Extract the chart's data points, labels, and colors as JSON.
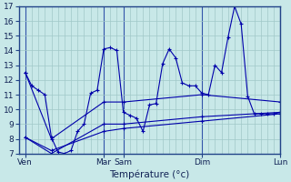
{
  "background_color": "#c8e8e8",
  "grid_color": "#a0c8c8",
  "line_color": "#0000aa",
  "title": "Température (°c)",
  "ylim": [
    7,
    17
  ],
  "yticks": [
    7,
    8,
    9,
    10,
    11,
    12,
    13,
    14,
    15,
    16,
    17
  ],
  "xlim": [
    0,
    40
  ],
  "x_major_ticks": [
    1,
    13,
    16,
    28,
    40
  ],
  "x_labels": [
    "Ven",
    "Mar",
    "Sam",
    "Dim",
    "Lun"
  ],
  "series": [
    {
      "x": [
        1,
        2,
        3,
        4,
        5,
        6,
        7,
        8,
        9,
        10,
        11,
        12,
        13,
        14,
        15,
        16,
        17,
        18,
        19,
        20,
        21,
        22,
        23,
        24,
        25,
        26,
        27,
        28,
        29,
        30,
        31,
        32,
        33,
        34,
        35,
        36,
        37,
        38,
        39,
        40
      ],
      "y": [
        12.5,
        11.6,
        11.3,
        11.0,
        8.1,
        7.1,
        7.0,
        7.2,
        8.5,
        9.0,
        11.1,
        11.3,
        14.1,
        14.2,
        14.0,
        9.8,
        9.6,
        9.4,
        8.5,
        10.3,
        10.4,
        13.1,
        14.1,
        13.5,
        11.8,
        11.6,
        11.6,
        11.1,
        11.0,
        13.0,
        12.5,
        14.9,
        17.0,
        15.8,
        10.9,
        9.7,
        9.7,
        9.7,
        9.7,
        9.8
      ]
    },
    {
      "x": [
        1,
        5,
        13,
        16,
        28,
        40
      ],
      "y": [
        8.1,
        7.2,
        8.5,
        8.7,
        9.2,
        9.7
      ]
    },
    {
      "x": [
        1,
        5,
        13,
        16,
        28,
        40
      ],
      "y": [
        8.1,
        7.0,
        9.0,
        9.0,
        9.5,
        9.8
      ]
    },
    {
      "x": [
        1,
        5,
        13,
        16,
        28,
        40
      ],
      "y": [
        12.5,
        8.0,
        10.5,
        10.5,
        11.0,
        10.5
      ]
    }
  ]
}
